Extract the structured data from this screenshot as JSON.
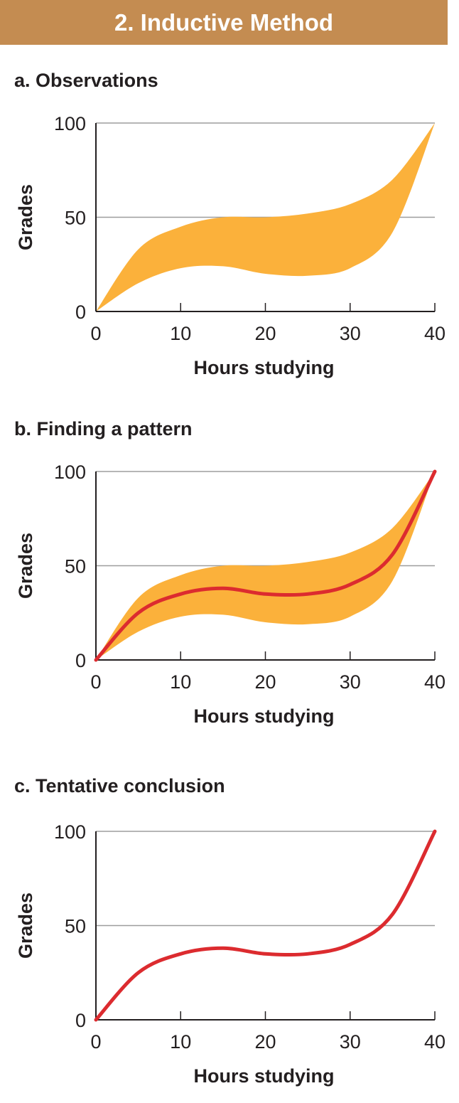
{
  "header": {
    "title": "2. Inductive Method"
  },
  "colors": {
    "band": "#fbb13b",
    "trend": "#dc2b2f",
    "grid": "#9d9d9d",
    "axis": "#231f20",
    "header_bg": "#c48c51"
  },
  "chart_data": [
    {
      "type": "area",
      "title": "a. Observations",
      "xlabel": "Hours studying",
      "ylabel": "Grades",
      "xlim": [
        0,
        40
      ],
      "ylim": [
        0,
        100
      ],
      "x_ticks": [
        0,
        10,
        20,
        30,
        40
      ],
      "y_ticks": [
        0,
        50,
        100
      ],
      "gridlines_y": [
        50,
        100
      ],
      "band": {
        "x": [
          0,
          5,
          10,
          15,
          20,
          25,
          30,
          35,
          40
        ],
        "upper": [
          0,
          33,
          45,
          50,
          50,
          52,
          57,
          70,
          100
        ],
        "lower": [
          0,
          15,
          23,
          24,
          20,
          19,
          23,
          42,
          100
        ]
      },
      "show_band": true,
      "show_trend": false
    },
    {
      "type": "line",
      "title": "b. Finding a pattern",
      "xlabel": "Hours studying",
      "ylabel": "Grades",
      "xlim": [
        0,
        40
      ],
      "ylim": [
        0,
        100
      ],
      "x_ticks": [
        0,
        10,
        20,
        30,
        40
      ],
      "y_ticks": [
        0,
        50,
        100
      ],
      "gridlines_y": [
        50,
        100
      ],
      "band": {
        "x": [
          0,
          5,
          10,
          15,
          20,
          25,
          30,
          35,
          40
        ],
        "upper": [
          0,
          33,
          45,
          50,
          50,
          52,
          57,
          70,
          100
        ],
        "lower": [
          0,
          15,
          23,
          24,
          20,
          19,
          23,
          42,
          100
        ]
      },
      "series": [
        {
          "x": [
            0,
            5,
            10,
            15,
            20,
            25,
            30,
            35,
            40
          ],
          "y": [
            0,
            25,
            35,
            38,
            35,
            35,
            40,
            56,
            100
          ]
        }
      ],
      "show_band": true,
      "show_trend": true
    },
    {
      "type": "line",
      "title": "c. Tentative conclusion",
      "xlabel": "Hours studying",
      "ylabel": "Grades",
      "xlim": [
        0,
        40
      ],
      "ylim": [
        0,
        100
      ],
      "x_ticks": [
        0,
        10,
        20,
        30,
        40
      ],
      "y_ticks": [
        0,
        50,
        100
      ],
      "gridlines_y": [
        50,
        100
      ],
      "series": [
        {
          "x": [
            0,
            5,
            10,
            15,
            20,
            25,
            30,
            35,
            40
          ],
          "y": [
            0,
            25,
            35,
            38,
            35,
            35,
            40,
            56,
            100
          ]
        }
      ],
      "show_band": false,
      "show_trend": true
    }
  ]
}
